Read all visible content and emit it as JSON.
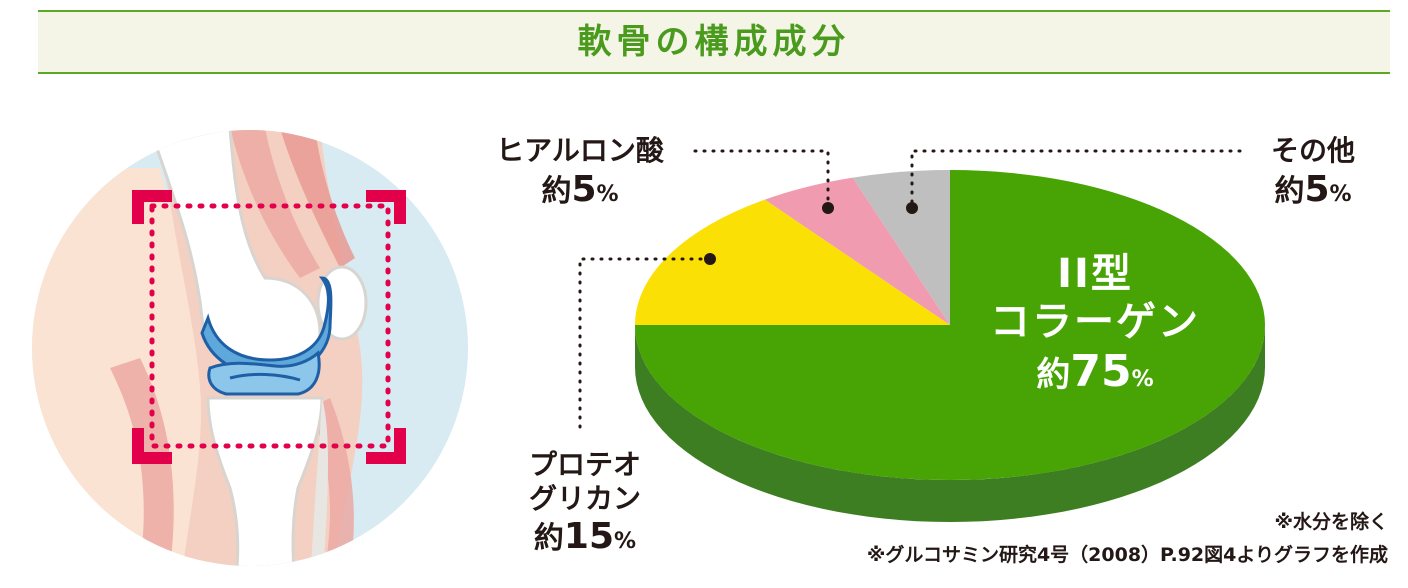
{
  "title": "軟骨の構成成分",
  "colors": {
    "title": "#4a9a1e",
    "band": "#f4f5e6",
    "collagen": "#47a404",
    "collagen_side": "#3e7e22",
    "proteoglycan": "#fbe005",
    "hyaluronic": "#f19bb0",
    "other": "#bfbfbf",
    "frame": "#e2004a"
  },
  "chart_data": {
    "type": "pie",
    "title": "軟骨の構成成分",
    "slices": [
      {
        "key": "collagen",
        "label_lines": [
          "II型",
          "コラーゲン"
        ],
        "prefix": "約",
        "value": 75
      },
      {
        "key": "proteoglycan",
        "label_lines": [
          "プロテオ",
          "グリカン"
        ],
        "prefix": "約",
        "value": 15
      },
      {
        "key": "hyaluronic",
        "label_lines": [
          "ヒアルロン酸"
        ],
        "prefix": "約",
        "value": 5
      },
      {
        "key": "other",
        "label_lines": [
          "その他"
        ],
        "prefix": "約",
        "value": 5
      }
    ],
    "unit": "%"
  },
  "labels": {
    "collagen_line1": "II型",
    "collagen_line2": "コラーゲン",
    "collagen_prefix": "約",
    "collagen_value": "75",
    "proteo_line1": "プロテオ",
    "proteo_line2": "グリカン",
    "proteo_prefix": "約",
    "proteo_value": "15",
    "hyal_line1": "ヒアルロン酸",
    "hyal_prefix": "約",
    "hyal_value": "5",
    "other_line1": "その他",
    "other_prefix": "約",
    "other_value": "5",
    "unit": "%"
  },
  "notes": {
    "water": "※水分を除く",
    "source": "※グルコサミン研究4号（2008）P.92図4よりグラフを作成"
  }
}
